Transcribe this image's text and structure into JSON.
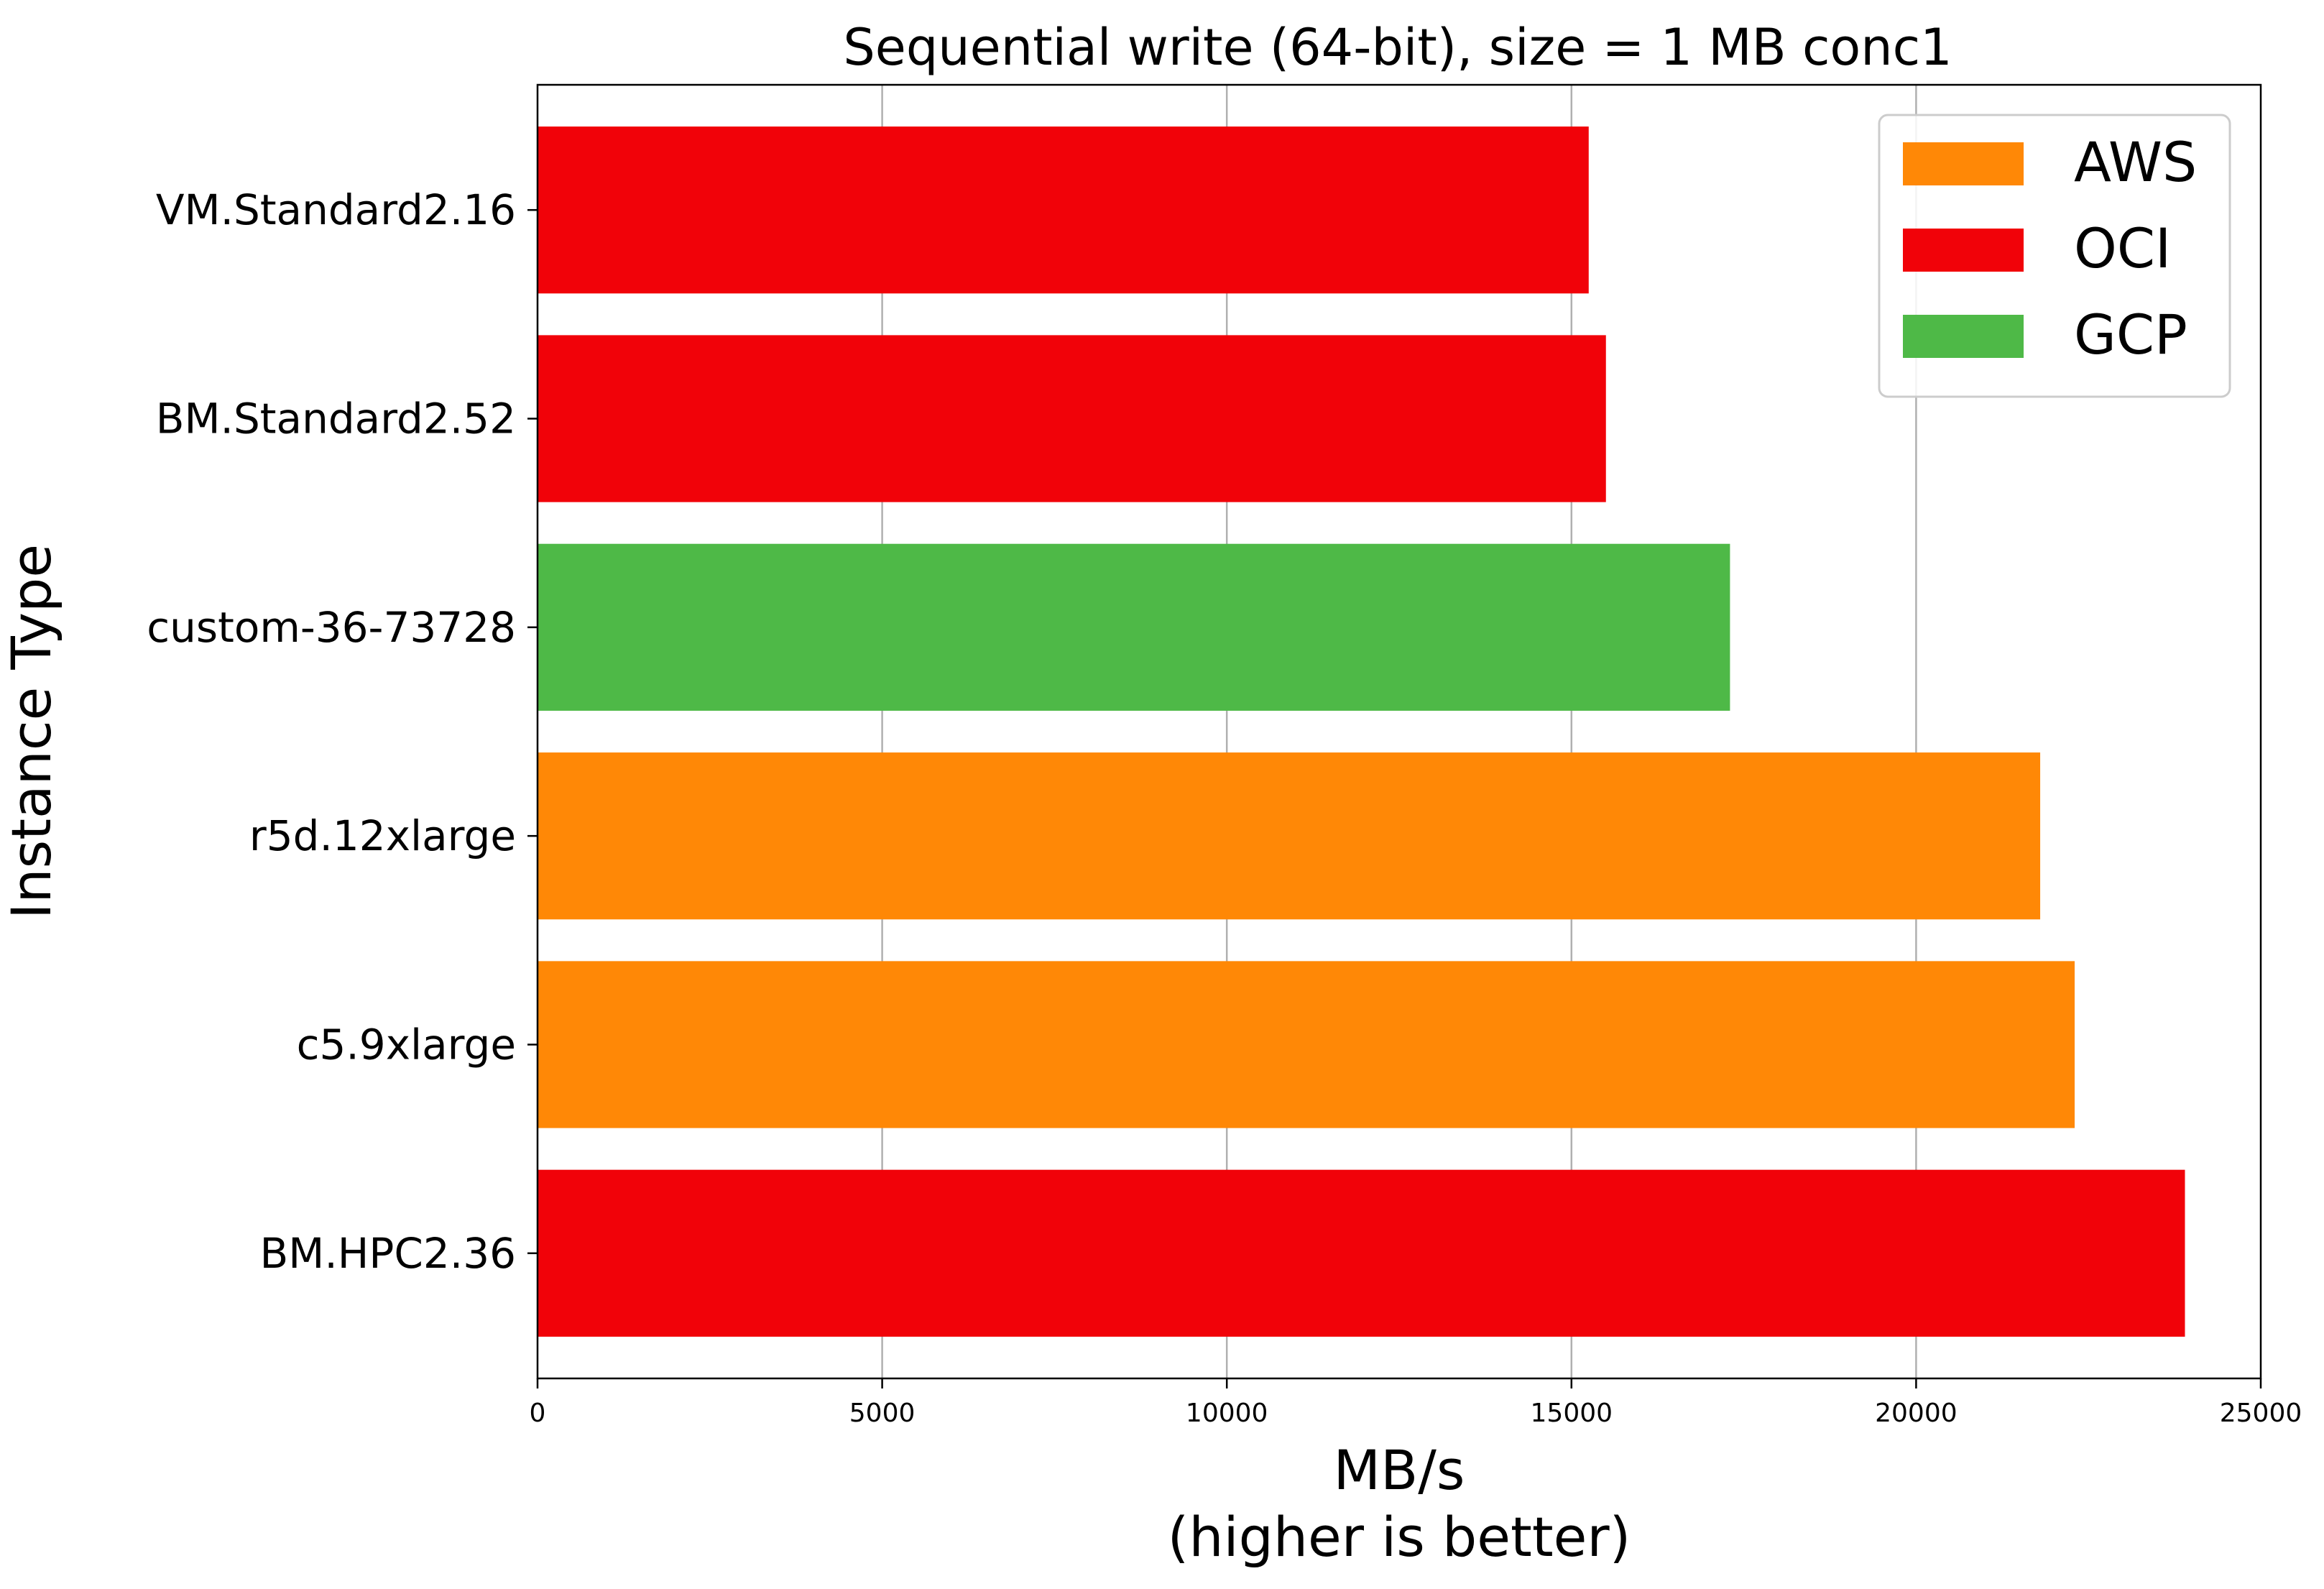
{
  "chart_data": {
    "type": "bar",
    "orientation": "horizontal",
    "title": "Sequential write (64-bit), size = 1 MB conc1",
    "xlabel_lines": [
      "MB/s",
      "(higher is better)"
    ],
    "ylabel": "Instance Type",
    "xlim": [
      0,
      25000
    ],
    "xticks": [
      0,
      5000,
      10000,
      15000,
      20000,
      25000
    ],
    "grid": "x-axis",
    "legend_position": "top-right",
    "legend": [
      {
        "name": "AWS",
        "color": "#ff8806"
      },
      {
        "name": "OCI",
        "color": "#f10209"
      },
      {
        "name": "GCP",
        "color": "#4eb947"
      }
    ],
    "bars": [
      {
        "category": "VM.Standard2.16",
        "value": 15250,
        "provider": "OCI",
        "color": "#f10209"
      },
      {
        "category": "BM.Standard2.52",
        "value": 15500,
        "provider": "OCI",
        "color": "#f10209"
      },
      {
        "category": "custom-36-73728",
        "value": 17300,
        "provider": "GCP",
        "color": "#4eb947"
      },
      {
        "category": "r5d.12xlarge",
        "value": 21800,
        "provider": "AWS",
        "color": "#ff8806"
      },
      {
        "category": "c5.9xlarge",
        "value": 22300,
        "provider": "AWS",
        "color": "#ff8806"
      },
      {
        "category": "BM.HPC2.36",
        "value": 23900,
        "provider": "OCI",
        "color": "#f10209"
      }
    ]
  }
}
